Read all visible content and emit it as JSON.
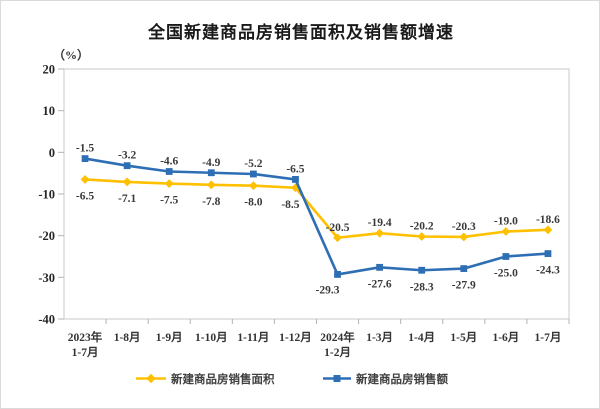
{
  "chart_data": {
    "type": "line",
    "title": "全国新建商品房销售面积及销售额增速",
    "ylabel": "（%）",
    "xlabel": "",
    "categories": [
      [
        "2023年",
        "1-7月"
      ],
      "1-8月",
      "1-9月",
      "1-10月",
      "1-11月",
      "1-12月",
      [
        "2024年",
        "1-2月"
      ],
      "1-3月",
      "1-4月",
      "1-5月",
      "1-6月",
      "1-7月"
    ],
    "series": [
      {
        "name": "新建商品房销售面积",
        "color": "#FFC000",
        "marker": "diamond",
        "values": [
          -6.5,
          -7.1,
          -7.5,
          -7.8,
          -8.0,
          -8.5,
          -20.5,
          -19.4,
          -20.2,
          -20.3,
          -19.0,
          -18.6
        ]
      },
      {
        "name": "新建商品房销售额",
        "color": "#2E6EB4",
        "marker": "square",
        "values": [
          -1.5,
          -3.2,
          -4.6,
          -4.9,
          -5.2,
          -6.5,
          -29.3,
          -27.6,
          -28.3,
          -27.9,
          -25.0,
          -24.3
        ]
      }
    ],
    "ylim": [
      -40,
      20
    ],
    "yticks": [
      20,
      10,
      0,
      -10,
      -20,
      -30,
      -40
    ],
    "grid": false,
    "legend_position": "bottom",
    "axis_color": "#c9c9c9",
    "tick_color": "#b3b3b3"
  }
}
